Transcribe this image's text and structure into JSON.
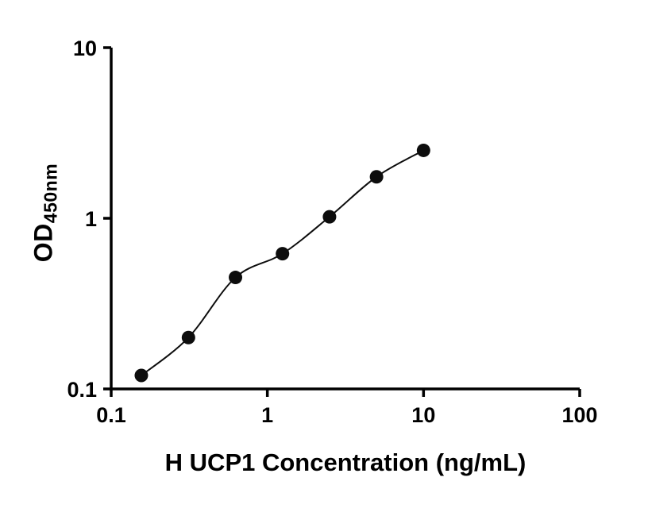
{
  "chart_data": {
    "type": "scatter",
    "subtype": "standard-curve",
    "xlabel": "H UCP1 Concentration (ng/mL)",
    "ylabel_main": "OD",
    "ylabel_sub": "450nm",
    "x_scale": "log",
    "y_scale": "log",
    "xlim": [
      0.1,
      100
    ],
    "ylim": [
      0.1,
      10
    ],
    "x_ticks": [
      "0.1",
      "1",
      "10",
      "100"
    ],
    "y_ticks": [
      "0.1",
      "1",
      "10"
    ],
    "points": {
      "x": [
        0.156,
        0.3125,
        0.625,
        1.25,
        2.5,
        5,
        10
      ],
      "y": [
        0.12,
        0.2,
        0.45,
        0.62,
        1.02,
        1.75,
        2.5
      ]
    },
    "legend": null,
    "grid": false,
    "point_color": "#0d0d0d",
    "line_color": "#0d0d0d",
    "axis_color": "#000000"
  }
}
